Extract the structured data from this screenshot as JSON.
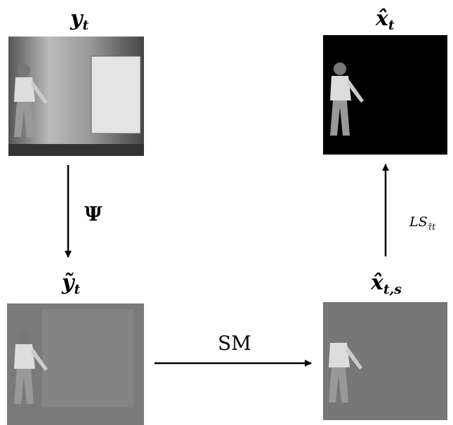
{
  "nodes": [
    {
      "label": {
        "base": "y",
        "sub": "t"
      }
    },
    {
      "label": {
        "base": "x̂",
        "sub": "t"
      }
    },
    {
      "label": {
        "base": "ỹ",
        "sub": "t"
      }
    },
    {
      "label": {
        "base": "x̂",
        "sub": "t,s"
      }
    }
  ],
  "edges": [
    {
      "label": {
        "base": "Ψ"
      }
    },
    {
      "label": {
        "base": "SM"
      }
    },
    {
      "label": {
        "base": "LS",
        "sub": "τ̂t"
      }
    }
  ]
}
